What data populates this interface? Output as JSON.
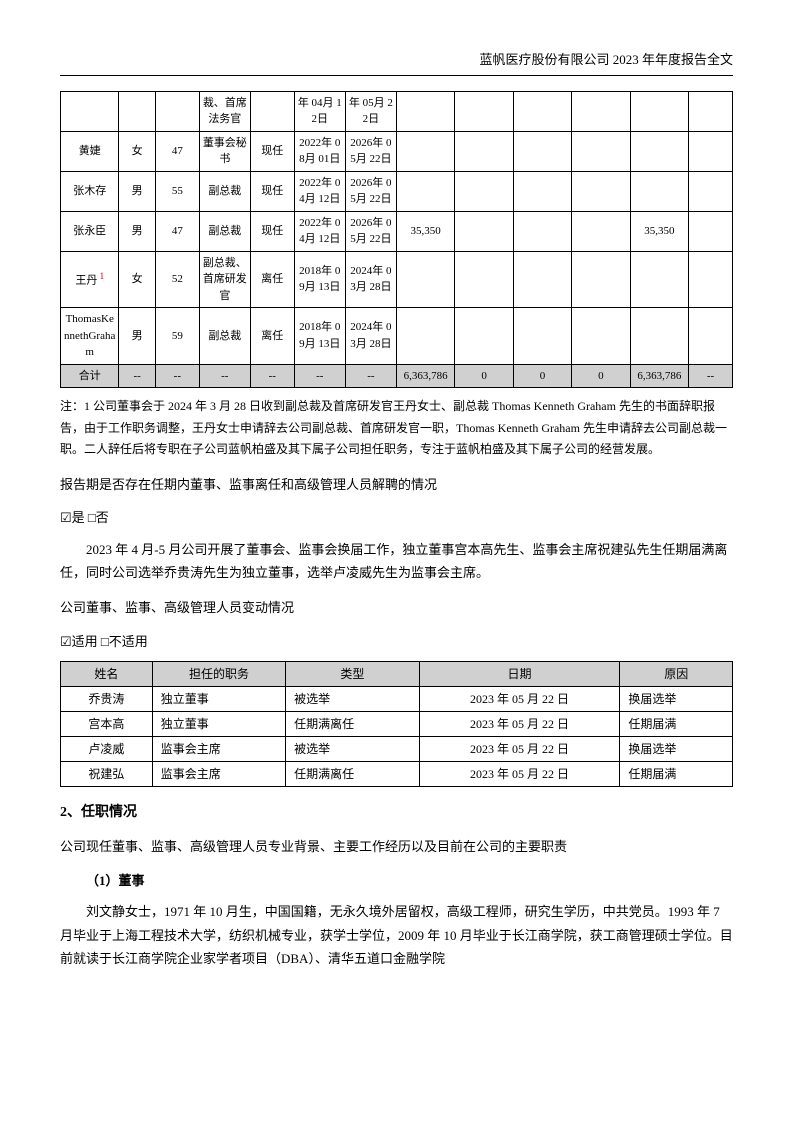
{
  "header": "蓝帆医疗股份有限公司 2023 年年度报告全文",
  "mainTable": {
    "rows": [
      {
        "name": "",
        "gender": "",
        "age": "",
        "position": "裁、首席法务官",
        "status": "",
        "start": "年 04月 12日",
        "end": "年 05月 22日",
        "c1": "",
        "c2": "",
        "c3": "",
        "c4": "",
        "c5": "",
        "c6": ""
      },
      {
        "name": "黄婕",
        "gender": "女",
        "age": "47",
        "position": "董事会秘书",
        "status": "现任",
        "start": "2022年 08月 01日",
        "end": "2026年 05月 22日",
        "c1": "",
        "c2": "",
        "c3": "",
        "c4": "",
        "c5": "",
        "c6": ""
      },
      {
        "name": "张木存",
        "gender": "男",
        "age": "55",
        "position": "副总裁",
        "status": "现任",
        "start": "2022年 04月 12日",
        "end": "2026年 05月 22日",
        "c1": "",
        "c2": "",
        "c3": "",
        "c4": "",
        "c5": "",
        "c6": ""
      },
      {
        "name": "张永臣",
        "gender": "男",
        "age": "47",
        "position": "副总裁",
        "status": "现任",
        "start": "2022年 04月 12日",
        "end": "2026年 05月 22日",
        "c1": "35,350",
        "c2": "",
        "c3": "",
        "c4": "",
        "c5": "35,350",
        "c6": ""
      },
      {
        "name": "王丹",
        "nameSup": "1",
        "gender": "女",
        "age": "52",
        "position": "副总裁、首席研发官",
        "status": "离任",
        "start": "2018年 09月 13日",
        "end": "2024年 03月 28日",
        "c1": "",
        "c2": "",
        "c3": "",
        "c4": "",
        "c5": "",
        "c6": ""
      },
      {
        "name": "ThomasKennethGraham",
        "gender": "男",
        "age": "59",
        "position": "副总裁",
        "status": "离任",
        "start": "2018年 09月 13日",
        "end": "2024年 03月 28日",
        "c1": "",
        "c2": "",
        "c3": "",
        "c4": "",
        "c5": "",
        "c6": ""
      }
    ],
    "total": {
      "label": "合计",
      "c1": "--",
      "c2": "--",
      "c3": "--",
      "c4": "--",
      "c5": "--",
      "c6": "--",
      "c7": "6,363,786",
      "c8": "0",
      "c9": "0",
      "c10": "0",
      "c11": "6,363,786",
      "c12": "--"
    }
  },
  "note": "注：1 公司董事会于 2024 年 3 月 28 日收到副总裁及首席研发官王丹女士、副总裁 Thomas Kenneth Graham  先生的书面辞职报告，由于工作职务调整，王丹女士申请辞去公司副总裁、首席研发官一职，Thomas Kenneth Graham  先生申请辞去公司副总裁一职。二人辞任后将专职在子公司蓝帆柏盛及其下属子公司担任职务，专注于蓝帆柏盛及其下属子公司的经营发展。",
  "q1": "报告期是否存在任期内董事、监事离任和高级管理人员解聘的情况",
  "q1check": "☑是 □否",
  "p1": "2023 年 4 月-5 月公司开展了董事会、监事会换届工作，独立董事宫本高先生、监事会主席祝建弘先生任期届满离任，同时公司选举乔贵涛先生为独立董事，选举卢凌威先生为监事会主席。",
  "q2": "公司董事、监事、高级管理人员变动情况",
  "q2check": "☑适用 □不适用",
  "changesTable": {
    "headers": [
      "姓名",
      "担任的职务",
      "类型",
      "日期",
      "原因"
    ],
    "rows": [
      [
        "乔贵涛",
        "独立董事",
        "被选举",
        "2023 年 05 月 22 日",
        "换届选举"
      ],
      [
        "宫本高",
        "独立董事",
        "任期满离任",
        "2023 年 05 月 22 日",
        "任期届满"
      ],
      [
        "卢凌威",
        "监事会主席",
        "被选举",
        "2023 年 05 月 22 日",
        "换届选举"
      ],
      [
        "祝建弘",
        "监事会主席",
        "任期满离任",
        "2023 年 05 月 22 日",
        "任期届满"
      ]
    ]
  },
  "section2": "2、任职情况",
  "p2": "公司现任董事、监事、高级管理人员专业背景、主要工作经历以及目前在公司的主要职责",
  "sub1": "（1）董事",
  "p3": "刘文静女士，1971 年 10 月生，中国国籍，无永久境外居留权，高级工程师，研究生学历，中共党员。1993 年 7 月毕业于上海工程技术大学，纺织机械专业，获学士学位，2009 年 10 月毕业于长江商学院，获工商管理硕士学位。目前就读于长江商学院企业家学者项目（DBA）、清华五道口金融学院"
}
